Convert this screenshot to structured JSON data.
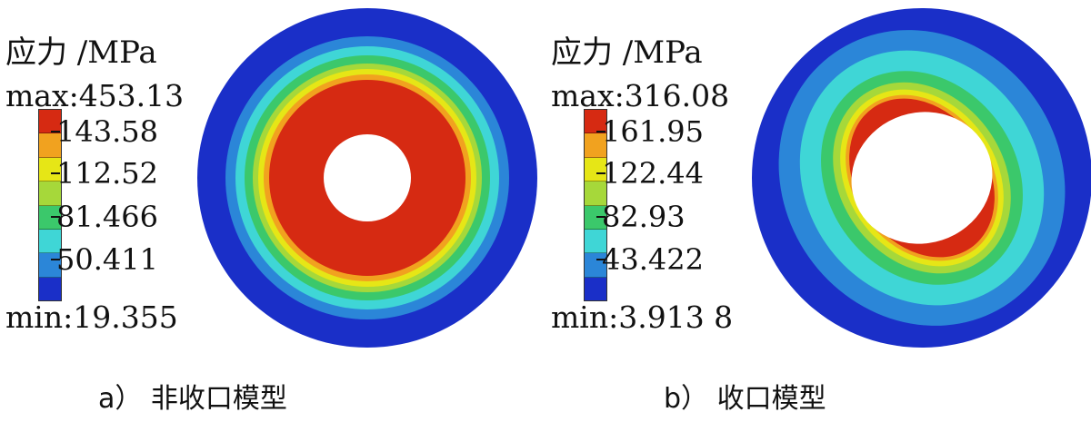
{
  "panels": [
    {
      "legend": {
        "title": "应力 /MPa",
        "max_label": "max:453.13",
        "min_label": "min:19.355",
        "tick_labels": [
          "143.58",
          "112.52",
          "81.466",
          "50.411"
        ],
        "colors": [
          "#d62a12",
          "#f1a21f",
          "#e6e616",
          "#a6d83a",
          "#3bc86b",
          "#3fd6d6",
          "#2b86d8",
          "#1a2fc8"
        ]
      },
      "caption": "a） 非收口模型"
    },
    {
      "legend": {
        "title": "应力 /MPa",
        "max_label": "max:316.08",
        "min_label": "min:3.913 8",
        "tick_labels": [
          "161.95",
          "122.44",
          "82.93",
          "43.422"
        ],
        "colors": [
          "#d62a12",
          "#f1a21f",
          "#e6e616",
          "#a6d83a",
          "#3bc86b",
          "#3fd6d6",
          "#2b86d8",
          "#1a2fc8"
        ]
      },
      "caption": "b） 收口模型"
    }
  ]
}
